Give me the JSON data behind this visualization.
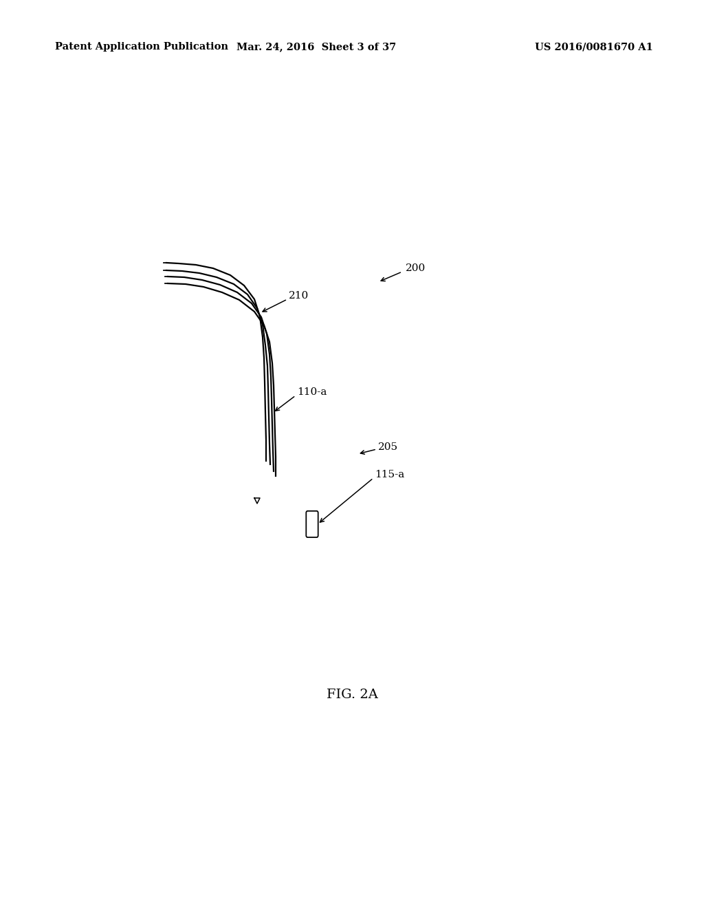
{
  "background_color": "#ffffff",
  "header_left": "Patent Application Publication",
  "header_center": "Mar. 24, 2016  Sheet 3 of 37",
  "header_right": "US 2016/0081670 A1",
  "header_fontsize": 10.5,
  "figure_label": "FIG. 2A",
  "figure_label_fontsize": 14,
  "line_color": "#000000",
  "line_width": 1.6,
  "label_fontsize": 11
}
